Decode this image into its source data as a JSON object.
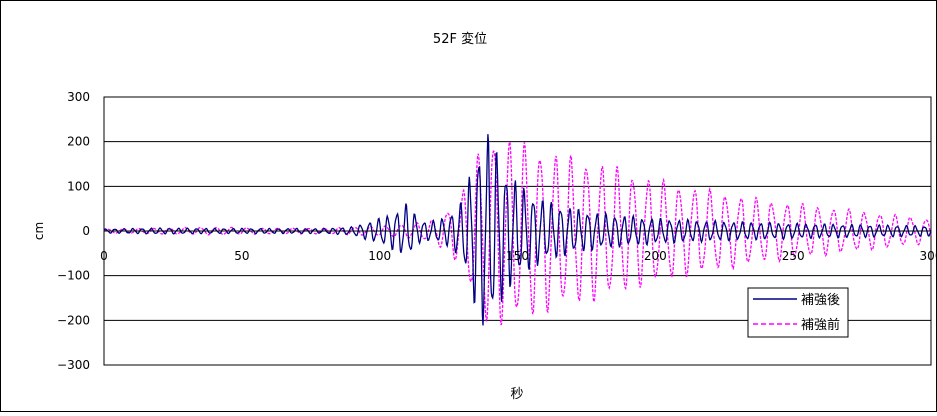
{
  "chart_data": {
    "type": "line",
    "title": "52F 変位",
    "xlabel": "秒",
    "ylabel": "cm",
    "xlim": [
      0,
      300
    ],
    "ylim": [
      -300,
      300
    ],
    "x_ticks": [
      0,
      50,
      100,
      150,
      200,
      250,
      300
    ],
    "y_ticks": [
      300,
      200,
      100,
      0,
      -100,
      -200,
      -300
    ],
    "x_tick_labels": [
      "0",
      "50",
      "100",
      "150",
      "200",
      "250",
      "300"
    ],
    "y_tick_labels": [
      "300",
      "200",
      "100",
      "0",
      "−100",
      "−200",
      "−300"
    ],
    "grid": "horizontal",
    "legend_position": "bottom-right inside plot",
    "series": [
      {
        "name": "補強後",
        "color": "#000080",
        "dash": "solid",
        "period": 3.3,
        "envelope": [
          [
            0,
            4
          ],
          [
            20,
            6
          ],
          [
            40,
            5
          ],
          [
            60,
            5
          ],
          [
            80,
            5
          ],
          [
            90,
            8
          ],
          [
            100,
            25
          ],
          [
            106,
            40
          ],
          [
            110,
            55
          ],
          [
            115,
            20
          ],
          [
            120,
            20
          ],
          [
            125,
            30
          ],
          [
            130,
            60
          ],
          [
            134,
            140
          ],
          [
            138,
            200
          ],
          [
            141,
            180
          ],
          [
            145,
            130
          ],
          [
            150,
            95
          ],
          [
            155,
            75
          ],
          [
            160,
            60
          ],
          [
            170,
            45
          ],
          [
            180,
            35
          ],
          [
            190,
            30
          ],
          [
            200,
            25
          ],
          [
            220,
            20
          ],
          [
            250,
            15
          ],
          [
            280,
            12
          ],
          [
            300,
            10
          ]
        ]
      },
      {
        "name": "補強前",
        "color": "#ff00ff",
        "dash": "dashed",
        "period": 5.6,
        "envelope": [
          [
            0,
            4
          ],
          [
            20,
            6
          ],
          [
            40,
            8
          ],
          [
            60,
            6
          ],
          [
            80,
            6
          ],
          [
            90,
            8
          ],
          [
            100,
            10
          ],
          [
            110,
            15
          ],
          [
            118,
            20
          ],
          [
            125,
            45
          ],
          [
            130,
            80
          ],
          [
            134,
            140
          ],
          [
            138,
            190
          ],
          [
            142,
            200
          ],
          [
            148,
            190
          ],
          [
            155,
            180
          ],
          [
            165,
            160
          ],
          [
            175,
            150
          ],
          [
            185,
            135
          ],
          [
            195,
            115
          ],
          [
            210,
            95
          ],
          [
            225,
            80
          ],
          [
            240,
            65
          ],
          [
            255,
            55
          ],
          [
            270,
            45
          ],
          [
            285,
            35
          ],
          [
            300,
            25
          ]
        ]
      }
    ]
  }
}
